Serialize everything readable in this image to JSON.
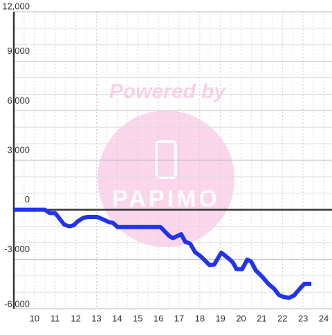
{
  "chart_data": {
    "type": "line",
    "watermark": {
      "text": "Powered by",
      "logo": "PAPIMO"
    },
    "xlim": [
      9,
      24.4
    ],
    "xticks": [
      10,
      11,
      12,
      13,
      14,
      15,
      16,
      17,
      18,
      19,
      20,
      21,
      22,
      23,
      24
    ],
    "ylim": [
      -6000,
      12000
    ],
    "yticks": [
      {
        "value": -6000,
        "label": "-6,000"
      },
      {
        "value": -3000,
        "label": "-3,000"
      },
      0,
      {
        "value": 3000,
        "label": "3,000"
      },
      {
        "value": 6000,
        "label": "6,000"
      },
      {
        "value": 9000,
        "label": "9,000"
      },
      {
        "value": 12000,
        "label": "12,000"
      }
    ],
    "yminor": [
      -5000,
      -4000,
      -2000,
      -1000,
      1000,
      2000,
      4000,
      5000,
      7000,
      8000,
      10000,
      11000
    ],
    "grid": true,
    "series": [
      {
        "color": "#2233ee",
        "x": [
          9,
          10.5,
          10.74,
          11.0,
          11.44,
          11.68,
          11.88,
          12.1,
          12.35,
          12.58,
          13.02,
          13.35,
          13.6,
          13.8,
          14.02,
          16.1,
          16.53,
          16.7,
          16.9,
          17.1,
          17.3,
          17.54,
          17.77,
          18.04,
          18.48,
          18.7,
          19.04,
          19.38,
          19.6,
          19.78,
          20.05,
          20.3,
          20.49,
          20.72,
          21.0,
          21.32,
          21.6,
          21.83,
          22.06,
          22.33,
          22.56,
          22.9,
          23.07,
          23.4
        ],
        "values": [
          0,
          0,
          -200,
          -200,
          -900,
          -1000,
          -950,
          -700,
          -500,
          -430,
          -430,
          -600,
          -750,
          -800,
          -1050,
          -1050,
          -1600,
          -1720,
          -1600,
          -1480,
          -1940,
          -2060,
          -2560,
          -2820,
          -3360,
          -3320,
          -2600,
          -2940,
          -3190,
          -3600,
          -3600,
          -3020,
          -3150,
          -3690,
          -4030,
          -4490,
          -4790,
          -5160,
          -5290,
          -5330,
          -5200,
          -4700,
          -4490,
          -4490
        ]
      }
    ]
  }
}
